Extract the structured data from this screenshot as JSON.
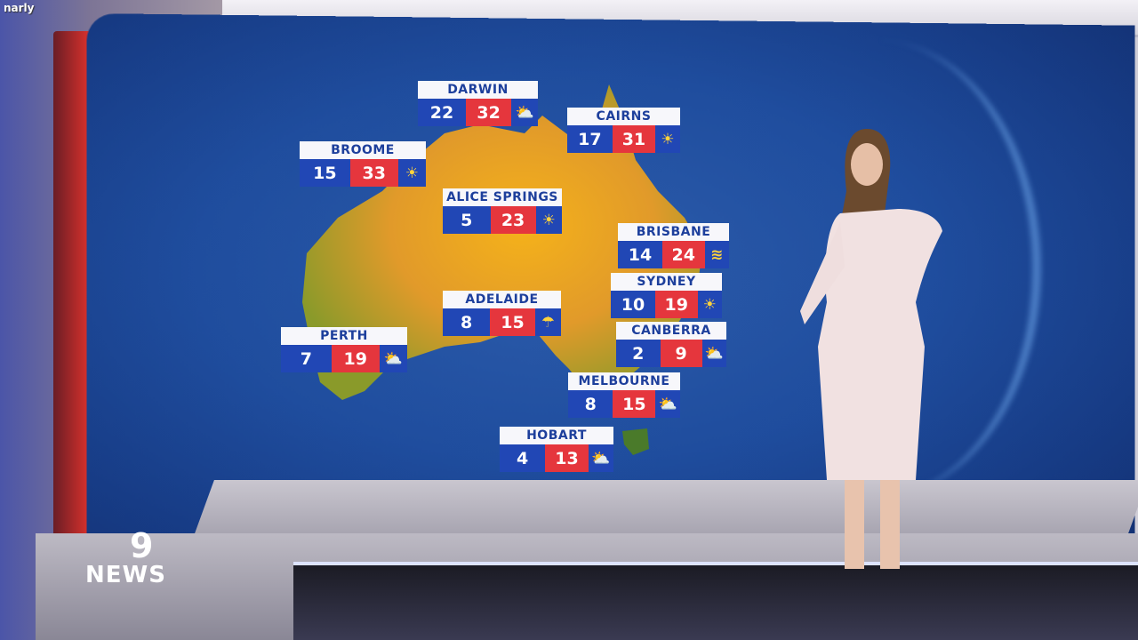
{
  "corner_text": "narly",
  "logo": {
    "brand": "9",
    "text": "NEWS"
  },
  "colors": {
    "min_bg": "#2147b5",
    "max_bg": "#e5363d",
    "title_bg": "#f7f7fb",
    "title_text": "#1d3f9c"
  },
  "cities": [
    {
      "name": "DARWIN",
      "min": "22",
      "max": "32",
      "icon": "partly-cloudy-icon"
    },
    {
      "name": "CAIRNS",
      "min": "17",
      "max": "31",
      "icon": "sunny-icon"
    },
    {
      "name": "BROOME",
      "min": "15",
      "max": "33",
      "icon": "sunny-icon"
    },
    {
      "name": "ALICE SPRINGS",
      "min": "5",
      "max": "23",
      "icon": "sunny-icon"
    },
    {
      "name": "BRISBANE",
      "min": "14",
      "max": "24",
      "icon": "windy-icon"
    },
    {
      "name": "SYDNEY",
      "min": "10",
      "max": "19",
      "icon": "sunny-icon"
    },
    {
      "name": "ADELAIDE",
      "min": "8",
      "max": "15",
      "icon": "showers-icon"
    },
    {
      "name": "PERTH",
      "min": "7",
      "max": "19",
      "icon": "partly-cloudy-icon"
    },
    {
      "name": "CANBERRA",
      "min": "2",
      "max": "9",
      "icon": "partly-cloudy-icon"
    },
    {
      "name": "MELBOURNE",
      "min": "8",
      "max": "15",
      "icon": "partly-cloudy-icon"
    },
    {
      "name": "HOBART",
      "min": "4",
      "max": "13",
      "icon": "partly-cloudy-icon"
    }
  ]
}
